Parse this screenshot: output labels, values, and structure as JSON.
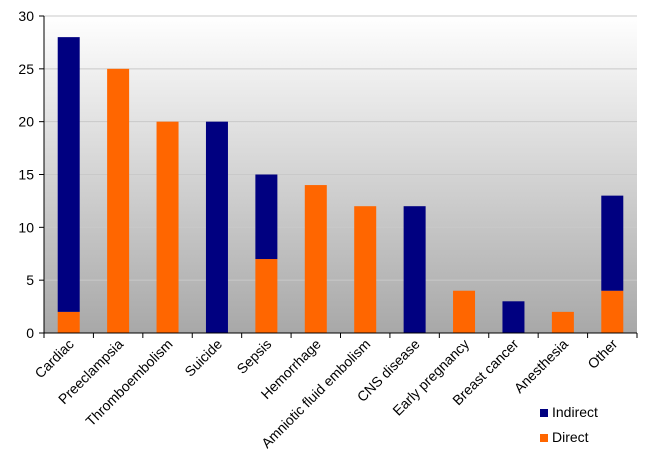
{
  "chart_data": {
    "type": "bar",
    "stacked": true,
    "categories": [
      "Cardiac",
      "Preeclampsia",
      "Thromboembolism",
      "Suicide",
      "Sepsis",
      "Hemorrhage",
      "Amniotic fluid embolism",
      "CNS disease",
      "Early pregnancy",
      "Breast cancer",
      "Anesthesia",
      "Other"
    ],
    "series": [
      {
        "name": "Direct",
        "color": "#ff6600",
        "values": [
          2,
          25,
          20,
          0,
          7,
          14,
          12,
          0,
          4,
          0,
          2,
          4
        ]
      },
      {
        "name": "Indirect",
        "color": "#000080",
        "values": [
          26,
          0,
          0,
          20,
          8,
          0,
          0,
          12,
          0,
          3,
          0,
          9
        ]
      }
    ],
    "ylim": [
      0,
      30
    ],
    "yticks": [
      0,
      5,
      10,
      15,
      20,
      25,
      30
    ],
    "grid": true,
    "legend": {
      "placement": "bottom-right",
      "order": [
        "Indirect",
        "Direct"
      ]
    },
    "background": {
      "top": "#ffffff",
      "bottom": "#a8a8a8"
    }
  }
}
